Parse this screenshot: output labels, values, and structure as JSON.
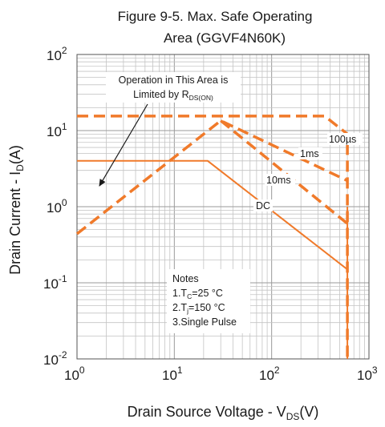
{
  "chart_data": {
    "type": "line",
    "title_line1": "Figure 9-5. Max. Safe Operating",
    "title_line2": "Area (GGVF4N60K)",
    "x_scale": "log",
    "y_scale": "log",
    "xlim": [
      1,
      1000
    ],
    "ylim": [
      0.01,
      100
    ],
    "grid": true,
    "x_ticks": [
      {
        "base": "10",
        "exp": "0"
      },
      {
        "base": "10",
        "exp": "1"
      },
      {
        "base": "10",
        "exp": "2"
      },
      {
        "base": "10",
        "exp": "3"
      }
    ],
    "y_ticks": [
      {
        "base": "10",
        "exp": "-2"
      },
      {
        "base": "10",
        "exp": "-1"
      },
      {
        "base": "10",
        "exp": "0"
      },
      {
        "base": "10",
        "exp": "1"
      },
      {
        "base": "10",
        "exp": "2"
      }
    ],
    "xlabel": {
      "main": "Drain Source Voltage  - V",
      "sub": "DS",
      "tail": "(V)"
    },
    "ylabel": {
      "main": "Drain Current - I",
      "sub": "D",
      "tail": "(A)"
    },
    "line_color": "#f07a2a",
    "series": [
      {
        "name": "100µs",
        "style": "dashed",
        "x": [
          1,
          350,
          600,
          600
        ],
        "y": [
          15.5,
          15.5,
          9.0,
          0.01
        ]
      },
      {
        "name": "1ms",
        "style": "dashed",
        "x": [
          1,
          30,
          600
        ],
        "y": [
          0.44,
          13.5,
          2.2
        ]
      },
      {
        "name": "10ms",
        "style": "dashed",
        "x": [
          30,
          600
        ],
        "y": [
          13.5,
          0.6
        ]
      },
      {
        "name": "DC",
        "style": "solid",
        "x": [
          1,
          22,
          600
        ],
        "y": [
          4.0,
          4.0,
          0.15
        ]
      },
      {
        "name": "",
        "style": "solid",
        "x": [
          600,
          600
        ],
        "y": [
          1.0,
          0.01
        ]
      }
    ],
    "annotations": {
      "rds": {
        "line1": "Operation in This Area is",
        "line2": "Limited by R",
        "line2_sub": "DS(ON)"
      },
      "label_100us": "100µs",
      "label_1ms": "1ms",
      "label_10ms": "10ms",
      "label_dc": "DC",
      "notes": [
        {
          "main": "Notes",
          "sub": "",
          "tail": ""
        },
        {
          "main": "1.T",
          "sub": "C",
          "tail": "=25 °C"
        },
        {
          "main": "2.T",
          "sub": "j",
          "tail": "=150 °C"
        },
        {
          "main": "3.Single Pulse",
          "sub": "",
          "tail": ""
        }
      ]
    }
  }
}
